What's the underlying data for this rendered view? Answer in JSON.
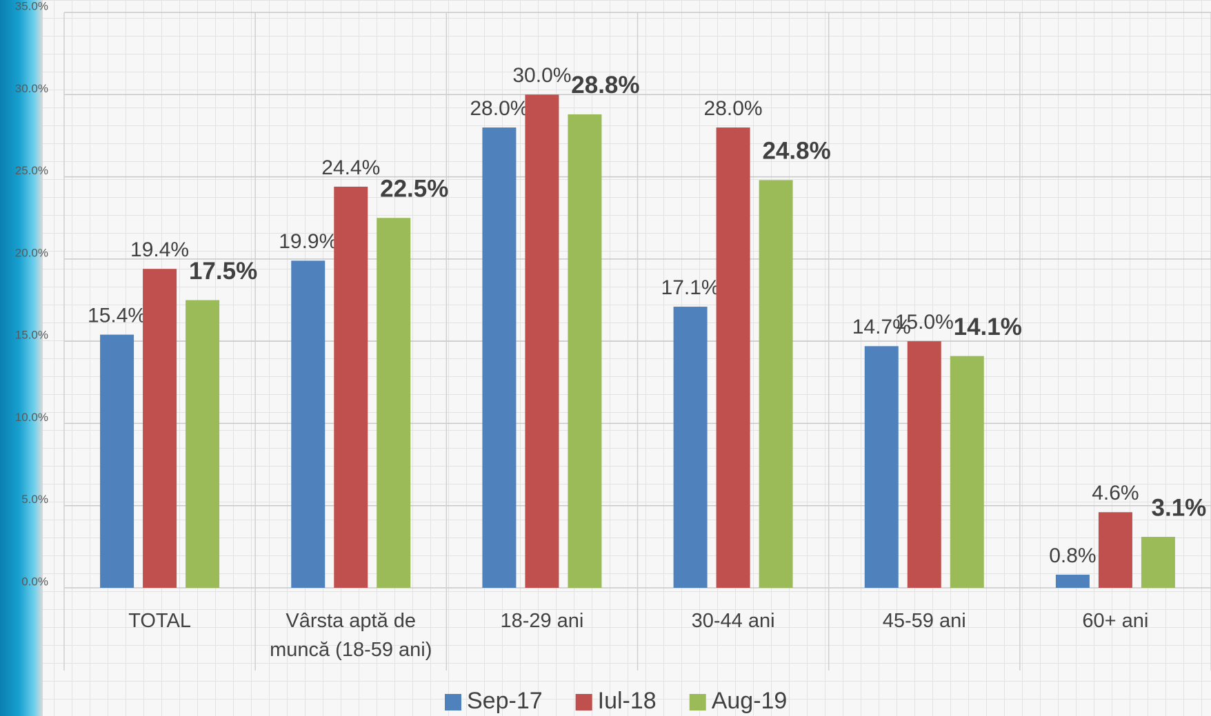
{
  "chart_data": {
    "type": "bar",
    "categories": [
      "TOTAL",
      "Vârsta aptă de muncă (18-59 ani)",
      "18-29 ani",
      "30-44 ani",
      "45-59 ani",
      "60+ ani"
    ],
    "series": [
      {
        "name": "Sep-17",
        "color": "#4f81bd",
        "values": [
          15.4,
          19.9,
          28.0,
          17.1,
          14.7,
          0.8
        ],
        "value_labels": [
          "15.4%",
          "19.9%",
          "28.0%",
          "17.1%",
          "14.7%",
          "0.8%"
        ]
      },
      {
        "name": "Iul-18",
        "color": "#c0504d",
        "values": [
          19.4,
          24.4,
          30.0,
          28.0,
          15.0,
          4.6
        ],
        "value_labels": [
          "19.4%",
          "24.4%",
          "30.0%",
          "28.0%",
          "15.0%",
          "4.6%"
        ]
      },
      {
        "name": "Aug-19",
        "color": "#9bbb59",
        "values": [
          17.5,
          22.5,
          28.8,
          24.8,
          14.1,
          3.1
        ],
        "value_labels": [
          "17.5%",
          "22.5%",
          "28.8%",
          "24.8%",
          "14.1%",
          "3.1%"
        ]
      }
    ],
    "ylim": [
      0,
      35
    ],
    "yticks": [
      {
        "value": 0,
        "label": "0.0%"
      },
      {
        "value": 5,
        "label": "5.0%"
      },
      {
        "value": 10,
        "label": "10.0%"
      },
      {
        "value": 15,
        "label": "15.0%"
      },
      {
        "value": 20,
        "label": "20.0%"
      },
      {
        "value": 25,
        "label": "25.0%"
      },
      {
        "value": 30,
        "label": "30.0%"
      },
      {
        "value": 35,
        "label": "35.0%"
      }
    ],
    "grid": true,
    "legend": "bottom"
  }
}
